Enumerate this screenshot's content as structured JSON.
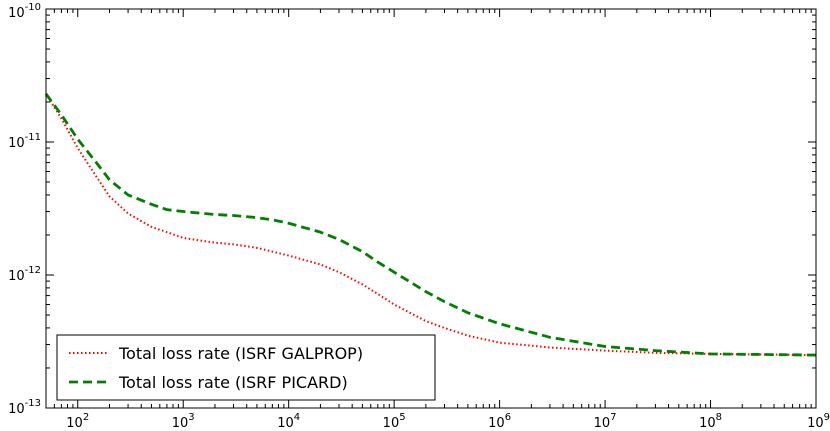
{
  "chart_data": {
    "type": "line",
    "title": "",
    "xlabel": "",
    "ylabel": "",
    "xscale": "log",
    "yscale": "log",
    "xlim": [
      50,
      1000000000
    ],
    "ylim": [
      1e-13,
      1e-10
    ],
    "grid": false,
    "legend_position": "lower-left",
    "x_ticks": [
      {
        "value": 100,
        "base": "10",
        "exp": "2"
      },
      {
        "value": 1000,
        "base": "10",
        "exp": "3"
      },
      {
        "value": 10000,
        "base": "10",
        "exp": "4"
      },
      {
        "value": 100000,
        "base": "10",
        "exp": "5"
      },
      {
        "value": 1000000,
        "base": "10",
        "exp": "6"
      },
      {
        "value": 10000000,
        "base": "10",
        "exp": "7"
      },
      {
        "value": 100000000,
        "base": "10",
        "exp": "8"
      },
      {
        "value": 1000000000,
        "base": "10",
        "exp": "9"
      }
    ],
    "y_ticks": [
      {
        "value": 1e-13,
        "base": "10",
        "exp": "-13"
      },
      {
        "value": 1e-12,
        "base": "10",
        "exp": "-12"
      },
      {
        "value": 1e-11,
        "base": "10",
        "exp": "-11"
      },
      {
        "value": 1e-10,
        "base": "10",
        "exp": "-10"
      }
    ],
    "series": [
      {
        "name": "Total loss rate (ISRF GALPROP)",
        "color": "#ff0000",
        "style": "dotted",
        "x": [
          50,
          70,
          100,
          150,
          200,
          300,
          500,
          700,
          1000,
          2000,
          3000,
          5000,
          7000,
          10000,
          20000,
          30000,
          50000,
          70000,
          100000,
          200000,
          300000,
          500000,
          1000000,
          3000000,
          10000000,
          30000000,
          100000000,
          1000000000
        ],
        "y": [
          2.3e-11,
          1.5e-11,
          9e-12,
          5.5e-12,
          3.9e-12,
          2.9e-12,
          2.3e-12,
          2.1e-12,
          1.9e-12,
          1.75e-12,
          1.7e-12,
          1.6e-12,
          1.5e-12,
          1.4e-12,
          1.2e-12,
          1.05e-12,
          8.5e-13,
          7.2e-13,
          6e-13,
          4.5e-13,
          4e-13,
          3.5e-13,
          3.1e-13,
          2.85e-13,
          2.7e-13,
          2.6e-13,
          2.55e-13,
          2.5e-13
        ]
      },
      {
        "name": "Total loss rate (ISRF PICARD)",
        "color": "#007f00",
        "style": "dashed",
        "x": [
          50,
          70,
          100,
          150,
          200,
          300,
          500,
          700,
          1000,
          2000,
          3000,
          5000,
          7000,
          10000,
          20000,
          30000,
          50000,
          70000,
          100000,
          200000,
          300000,
          500000,
          1000000,
          3000000,
          10000000,
          30000000,
          100000000,
          1000000000
        ],
        "y": [
          2.3e-11,
          1.6e-11,
          1.05e-11,
          7e-12,
          5.2e-12,
          4e-12,
          3.4e-12,
          3.1e-12,
          3e-12,
          2.85e-12,
          2.8e-12,
          2.7e-12,
          2.6e-12,
          2.45e-12,
          2.1e-12,
          1.85e-12,
          1.5e-12,
          1.25e-12,
          1.05e-12,
          7.5e-13,
          6.3e-13,
          5.2e-13,
          4.3e-13,
          3.4e-13,
          2.9e-13,
          2.7e-13,
          2.55e-13,
          2.5e-13
        ]
      }
    ]
  }
}
